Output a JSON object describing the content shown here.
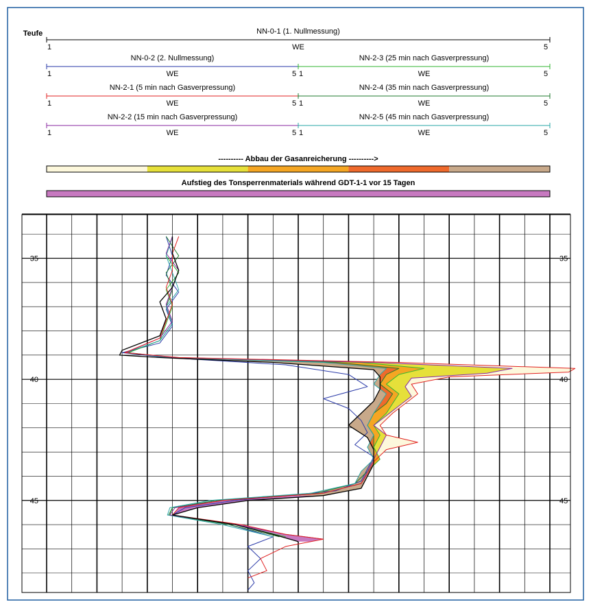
{
  "chart_data": {
    "type": "line",
    "ylabel": "Teufe",
    "xlabel": "WE",
    "xlim": [
      1,
      5
    ],
    "ylim": [
      33.2,
      48.8
    ],
    "y_ticks": [
      35,
      40,
      45
    ],
    "grid": true,
    "colors": {
      "frame": "#1f5fa0",
      "track_bg": "#ffffff"
    },
    "legend_tracks": [
      {
        "name": "NN-0-1 (1. Nullmessung)",
        "axis_label": "WE",
        "min_label": "1",
        "max_label": "5",
        "color": "#000000"
      },
      {
        "name": "NN-0-2 (2. Nullmessung)",
        "axis_label": "WE",
        "min_label": "1",
        "max_label": "5",
        "color": "#2a3aa8"
      },
      {
        "name": "NN-2-3 (25 min nach Gasverpressung)",
        "axis_label": "WE",
        "min_label": "1",
        "max_label": "5",
        "color": "#33b533"
      },
      {
        "name": "NN-2-1 (5 min nach Gasverpressung)",
        "axis_label": "WE",
        "min_label": "1",
        "max_label": "5",
        "color": "#e02020"
      },
      {
        "name": "NN-2-4 (35 min nach Gasverpressung)",
        "axis_label": "WE",
        "min_label": "1",
        "max_label": "5",
        "color": "#1e7a2e"
      },
      {
        "name": "NN-2-2 (15 min nach Gasverpressung)",
        "axis_label": "WE",
        "min_label": "1",
        "max_label": "5",
        "color": "#8a2aa0"
      },
      {
        "name": "NN-2-5 (45 min nach Gasverpressung)",
        "axis_label": "WE",
        "min_label": "1",
        "max_label": "5",
        "color": "#2aa7a7"
      }
    ],
    "gas_bar": {
      "title": "---------- Abbau der Gasanreicherung ---------->",
      "colors": [
        "#fdf8dc",
        "#e6e03a",
        "#f5a623",
        "#ef6a2c",
        "#c8a98a"
      ]
    },
    "clay_bar": {
      "title": "Aufstieg des Tonsperrenmaterials während GDT-1-1 vor 15 Tagen",
      "color": "#c779c0"
    },
    "fill_colors": {
      "gas_outer": "#fdf8dc",
      "gas_mid": "#e6e03a",
      "gas_orange": "#f5a623",
      "gas_red": "#ef6a2c",
      "gas_tan": "#c8a98a",
      "clay": "#c779c0"
    },
    "series": [
      {
        "name": "NN-0-1 (1. Nullmessung)",
        "color": "#000000",
        "points": [
          [
            34.1,
            2.0
          ],
          [
            34.8,
            2.0
          ],
          [
            35.5,
            2.05
          ],
          [
            36.2,
            2.0
          ],
          [
            36.8,
            1.9
          ],
          [
            37.5,
            1.95
          ],
          [
            38.2,
            1.9
          ],
          [
            38.8,
            1.6
          ],
          [
            39.0,
            1.58
          ],
          [
            39.1,
            1.9
          ],
          [
            39.3,
            2.8
          ],
          [
            39.6,
            3.6
          ],
          [
            39.9,
            3.65
          ],
          [
            40.4,
            3.65
          ],
          [
            40.9,
            3.6
          ],
          [
            41.4,
            3.5
          ],
          [
            41.9,
            3.4
          ],
          [
            42.4,
            3.55
          ],
          [
            42.9,
            3.6
          ],
          [
            43.5,
            3.6
          ],
          [
            44.0,
            3.55
          ],
          [
            44.5,
            3.5
          ],
          [
            44.8,
            3.2
          ],
          [
            45.0,
            2.6
          ],
          [
            45.3,
            2.2
          ],
          [
            45.6,
            2.0
          ],
          [
            46.0,
            2.5
          ],
          [
            46.4,
            2.8
          ],
          [
            46.7,
            3.0
          ]
        ]
      },
      {
        "name": "NN-0-2 (2. Nullmessung)",
        "color": "#2a3aa8",
        "points": [
          [
            34.1,
            1.95
          ],
          [
            34.9,
            2.0
          ],
          [
            35.7,
            1.95
          ],
          [
            36.4,
            2.05
          ],
          [
            37.1,
            1.95
          ],
          [
            37.8,
            2.0
          ],
          [
            38.5,
            1.9
          ],
          [
            38.9,
            1.6
          ],
          [
            39.1,
            1.95
          ],
          [
            39.4,
            2.9
          ],
          [
            39.8,
            3.4
          ],
          [
            40.3,
            3.55
          ],
          [
            40.8,
            3.2
          ],
          [
            41.2,
            3.4
          ],
          [
            41.7,
            3.5
          ],
          [
            42.2,
            3.55
          ],
          [
            42.7,
            3.45
          ],
          [
            43.2,
            3.6
          ],
          [
            43.7,
            3.55
          ],
          [
            44.2,
            3.5
          ],
          [
            44.6,
            3.3
          ],
          [
            45.0,
            2.5
          ],
          [
            45.3,
            2.1
          ],
          [
            45.6,
            2.0
          ],
          [
            46.0,
            2.45
          ],
          [
            46.5,
            2.8
          ],
          [
            46.9,
            2.6
          ],
          [
            47.4,
            2.7
          ],
          [
            47.9,
            2.6
          ],
          [
            48.4,
            2.65
          ],
          [
            48.7,
            2.6
          ]
        ]
      },
      {
        "name": "NN-2-3 (25 min nach Gasverpressung)",
        "color": "#33b533",
        "points": [
          [
            34.1,
            2.0
          ],
          [
            34.9,
            1.95
          ],
          [
            35.6,
            2.05
          ],
          [
            36.3,
            1.95
          ],
          [
            37.0,
            2.0
          ],
          [
            37.7,
            1.95
          ],
          [
            38.4,
            1.9
          ],
          [
            38.9,
            1.65
          ],
          [
            39.1,
            2.0
          ],
          [
            39.3,
            3.5
          ],
          [
            39.55,
            4.0
          ],
          [
            39.8,
            3.8
          ],
          [
            40.2,
            3.7
          ],
          [
            40.6,
            3.8
          ],
          [
            41.0,
            3.75
          ],
          [
            41.4,
            3.7
          ],
          [
            41.9,
            3.6
          ],
          [
            42.3,
            3.65
          ],
          [
            42.8,
            3.6
          ],
          [
            43.3,
            3.65
          ],
          [
            43.8,
            3.55
          ],
          [
            44.3,
            3.5
          ],
          [
            44.7,
            3.2
          ],
          [
            45.0,
            2.4
          ],
          [
            45.3,
            2.0
          ],
          [
            45.6,
            1.98
          ],
          [
            46.0,
            2.5
          ],
          [
            46.5,
            2.9
          ]
        ]
      },
      {
        "name": "NN-2-1 (5 min nach Gasverpressung)",
        "color": "#e02020",
        "points": [
          [
            34.1,
            2.05
          ],
          [
            34.8,
            2.0
          ],
          [
            35.5,
            2.0
          ],
          [
            36.2,
            1.95
          ],
          [
            36.9,
            2.0
          ],
          [
            37.6,
            1.95
          ],
          [
            38.3,
            1.9
          ],
          [
            38.9,
            1.62
          ],
          [
            39.1,
            2.05
          ],
          [
            39.3,
            3.8
          ],
          [
            39.55,
            5.2
          ],
          [
            39.7,
            5.15
          ],
          [
            39.9,
            4.2
          ],
          [
            40.2,
            3.9
          ],
          [
            40.6,
            3.95
          ],
          [
            41.0,
            3.85
          ],
          [
            41.4,
            3.75
          ],
          [
            41.9,
            3.65
          ],
          [
            42.3,
            3.7
          ],
          [
            42.6,
            3.95
          ],
          [
            42.9,
            3.7
          ],
          [
            43.4,
            3.6
          ],
          [
            43.9,
            3.55
          ],
          [
            44.3,
            3.5
          ],
          [
            44.7,
            3.2
          ],
          [
            45.0,
            2.4
          ],
          [
            45.3,
            2.05
          ],
          [
            45.6,
            2.0
          ],
          [
            46.0,
            2.55
          ],
          [
            46.4,
            2.9
          ],
          [
            46.6,
            3.2
          ],
          [
            46.9,
            2.9
          ],
          [
            47.4,
            2.7
          ],
          [
            47.9,
            2.75
          ],
          [
            48.2,
            2.6
          ]
        ]
      },
      {
        "name": "NN-2-4 (35 min nach Gasverpressung)",
        "color": "#1e7a2e",
        "points": [
          [
            34.1,
            1.95
          ],
          [
            34.9,
            2.05
          ],
          [
            35.6,
            1.95
          ],
          [
            36.3,
            2.0
          ],
          [
            37.0,
            1.95
          ],
          [
            37.7,
            2.0
          ],
          [
            38.4,
            1.9
          ],
          [
            38.9,
            1.64
          ],
          [
            39.1,
            1.98
          ],
          [
            39.3,
            3.3
          ],
          [
            39.55,
            3.8
          ],
          [
            39.8,
            3.7
          ],
          [
            40.2,
            3.65
          ],
          [
            40.6,
            3.75
          ],
          [
            41.0,
            3.7
          ],
          [
            41.4,
            3.6
          ],
          [
            41.9,
            3.55
          ],
          [
            42.3,
            3.6
          ],
          [
            42.8,
            3.6
          ],
          [
            43.3,
            3.6
          ],
          [
            43.8,
            3.55
          ],
          [
            44.3,
            3.45
          ],
          [
            44.7,
            3.15
          ],
          [
            45.0,
            2.35
          ],
          [
            45.3,
            2.0
          ],
          [
            45.6,
            1.97
          ],
          [
            46.0,
            2.45
          ],
          [
            46.5,
            2.85
          ]
        ]
      },
      {
        "name": "NN-2-2 (15 min nach Gasverpressung)",
        "color": "#8a2aa0",
        "points": [
          [
            34.1,
            2.0
          ],
          [
            34.8,
            1.95
          ],
          [
            35.5,
            2.05
          ],
          [
            36.2,
            2.0
          ],
          [
            36.9,
            1.95
          ],
          [
            37.6,
            2.0
          ],
          [
            38.3,
            1.9
          ],
          [
            38.9,
            1.63
          ],
          [
            39.1,
            2.02
          ],
          [
            39.3,
            3.6
          ],
          [
            39.55,
            4.7
          ],
          [
            39.75,
            4.5
          ],
          [
            39.95,
            3.9
          ],
          [
            40.3,
            3.85
          ],
          [
            40.7,
            3.9
          ],
          [
            41.1,
            3.8
          ],
          [
            41.5,
            3.7
          ],
          [
            41.9,
            3.6
          ],
          [
            42.3,
            3.7
          ],
          [
            42.8,
            3.65
          ],
          [
            43.3,
            3.6
          ],
          [
            43.8,
            3.55
          ],
          [
            44.3,
            3.5
          ],
          [
            44.7,
            3.2
          ],
          [
            45.0,
            2.4
          ],
          [
            45.3,
            2.02
          ],
          [
            45.6,
            1.98
          ],
          [
            46.0,
            2.5
          ],
          [
            46.4,
            2.9
          ],
          [
            46.6,
            3.2
          ]
        ]
      },
      {
        "name": "NN-2-5 (45 min nach Gasverpressung)",
        "color": "#2aa7a7",
        "points": [
          [
            34.1,
            2.0
          ],
          [
            34.9,
            1.95
          ],
          [
            35.6,
            2.0
          ],
          [
            36.3,
            2.05
          ],
          [
            37.0,
            1.95
          ],
          [
            37.7,
            2.0
          ],
          [
            38.4,
            1.9
          ],
          [
            38.9,
            1.63
          ],
          [
            39.1,
            1.97
          ],
          [
            39.3,
            3.2
          ],
          [
            39.55,
            3.7
          ],
          [
            39.8,
            3.65
          ],
          [
            40.2,
            3.6
          ],
          [
            40.6,
            3.7
          ],
          [
            41.0,
            3.65
          ],
          [
            41.4,
            3.6
          ],
          [
            41.9,
            3.55
          ],
          [
            42.3,
            3.6
          ],
          [
            42.8,
            3.55
          ],
          [
            43.3,
            3.6
          ],
          [
            43.8,
            3.5
          ],
          [
            44.3,
            3.45
          ],
          [
            44.7,
            3.1
          ],
          [
            45.0,
            2.3
          ],
          [
            45.3,
            1.98
          ],
          [
            45.6,
            1.96
          ],
          [
            46.0,
            2.4
          ],
          [
            46.5,
            2.8
          ]
        ]
      }
    ]
  }
}
